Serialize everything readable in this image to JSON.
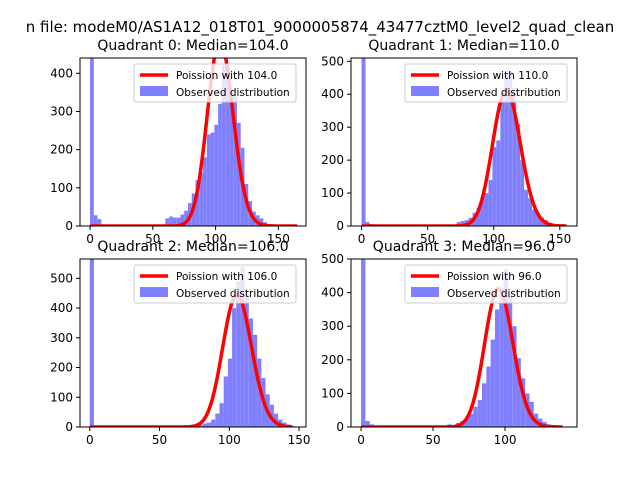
{
  "figure": {
    "suptitle": "n file: modeM0/AS1A12_018T01_9000005874_43477cztM0_level2_quad_clean"
  },
  "chart_data": [
    {
      "type": "bar",
      "title": "Quadrant 0: Median=104.0",
      "xlim": [
        -8,
        172
      ],
      "ylim": [
        0,
        440
      ],
      "xticks": [
        0,
        50,
        100,
        150
      ],
      "yticks": [
        0,
        100,
        200,
        300,
        400
      ],
      "hist": {
        "name": "Observed distribution",
        "color": "#8080ff",
        "bin_width": 3,
        "bins": [
          [
            0,
            440
          ],
          [
            3,
            28
          ],
          [
            6,
            18
          ],
          [
            24,
            2
          ],
          [
            36,
            2
          ],
          [
            48,
            3
          ],
          [
            60,
            20
          ],
          [
            63,
            25
          ],
          [
            66,
            22
          ],
          [
            69,
            22
          ],
          [
            72,
            30
          ],
          [
            75,
            40
          ],
          [
            78,
            60
          ],
          [
            81,
            85
          ],
          [
            84,
            120
          ],
          [
            87,
            140
          ],
          [
            90,
            180
          ],
          [
            93,
            240
          ],
          [
            96,
            245
          ],
          [
            99,
            265
          ],
          [
            102,
            320
          ],
          [
            105,
            420
          ],
          [
            108,
            400
          ],
          [
            111,
            355
          ],
          [
            114,
            340
          ],
          [
            117,
            270
          ],
          [
            120,
            205
          ],
          [
            123,
            110
          ],
          [
            126,
            65
          ],
          [
            129,
            38
          ],
          [
            132,
            28
          ],
          [
            135,
            20
          ],
          [
            138,
            10
          ],
          [
            141,
            5
          ],
          [
            144,
            3
          ],
          [
            150,
            2
          ],
          [
            159,
            2
          ],
          [
            162,
            2
          ]
        ]
      },
      "curve": {
        "name": "Poission with 104.0",
        "color": "#ff0000",
        "mean": 104.0,
        "x_range": [
          0,
          165
        ]
      },
      "legend": {
        "position": "top-right",
        "entries": [
          "Poission with 104.0",
          "Observed distribution"
        ]
      }
    },
    {
      "type": "bar",
      "title": "Quadrant 1: Median=110.0",
      "xlim": [
        -8,
        163
      ],
      "ylim": [
        0,
        510
      ],
      "xticks": [
        0,
        50,
        100,
        150
      ],
      "yticks": [
        0,
        100,
        200,
        300,
        400,
        500
      ],
      "hist": {
        "name": "Observed distribution",
        "color": "#8080ff",
        "bin_width": 3,
        "bins": [
          [
            0,
            510
          ],
          [
            3,
            12
          ],
          [
            6,
            6
          ],
          [
            63,
            5
          ],
          [
            72,
            12
          ],
          [
            75,
            15
          ],
          [
            78,
            18
          ],
          [
            81,
            25
          ],
          [
            84,
            40
          ],
          [
            87,
            55
          ],
          [
            90,
            90
          ],
          [
            93,
            100
          ],
          [
            96,
            140
          ],
          [
            99,
            240
          ],
          [
            102,
            260
          ],
          [
            105,
            380
          ],
          [
            108,
            460
          ],
          [
            111,
            470
          ],
          [
            114,
            420
          ],
          [
            117,
            310
          ],
          [
            120,
            200
          ],
          [
            123,
            110
          ],
          [
            126,
            85
          ],
          [
            129,
            50
          ],
          [
            132,
            40
          ],
          [
            135,
            25
          ],
          [
            138,
            18
          ],
          [
            141,
            10
          ],
          [
            144,
            6
          ],
          [
            147,
            4
          ],
          [
            150,
            3
          ],
          [
            153,
            2
          ]
        ]
      },
      "curve": {
        "name": "Poission with 110.0",
        "color": "#ff0000",
        "mean": 110.0,
        "x_range": [
          0,
          155
        ]
      },
      "legend": {
        "position": "top-right",
        "entries": [
          "Poission with 110.0",
          "Observed distribution"
        ]
      }
    },
    {
      "type": "bar",
      "title": "Quadrant 2: Median=106.0",
      "xlim": [
        -7,
        155
      ],
      "ylim": [
        0,
        565
      ],
      "xticks": [
        0,
        50,
        100,
        150
      ],
      "yticks": [
        0,
        100,
        200,
        300,
        400,
        500
      ],
      "hist": {
        "name": "Observed distribution",
        "color": "#8080ff",
        "bin_width": 3,
        "bins": [
          [
            0,
            565
          ],
          [
            66,
            4
          ],
          [
            72,
            6
          ],
          [
            75,
            8
          ],
          [
            78,
            8
          ],
          [
            81,
            12
          ],
          [
            84,
            15
          ],
          [
            87,
            25
          ],
          [
            90,
            45
          ],
          [
            93,
            80
          ],
          [
            96,
            170
          ],
          [
            99,
            230
          ],
          [
            102,
            400
          ],
          [
            105,
            490
          ],
          [
            108,
            540
          ],
          [
            111,
            445
          ],
          [
            114,
            365
          ],
          [
            117,
            310
          ],
          [
            120,
            230
          ],
          [
            123,
            165
          ],
          [
            126,
            110
          ],
          [
            129,
            75
          ],
          [
            132,
            45
          ],
          [
            135,
            25
          ],
          [
            138,
            15
          ],
          [
            141,
            8
          ],
          [
            144,
            4
          ]
        ]
      },
      "curve": {
        "name": "Poission with 106.0",
        "color": "#ff0000",
        "mean": 106.0,
        "x_range": [
          0,
          145
        ]
      },
      "legend": {
        "position": "top-right",
        "entries": [
          "Poission with 106.0",
          "Observed distribution"
        ]
      }
    },
    {
      "type": "bar",
      "title": "Quadrant 3: Median=96.0",
      "xlim": [
        -7,
        150
      ],
      "ylim": [
        0,
        500
      ],
      "xticks": [
        0,
        50,
        100
      ],
      "yticks": [
        0,
        100,
        200,
        300,
        400,
        500
      ],
      "hist": {
        "name": "Observed distribution",
        "color": "#8080ff",
        "bin_width": 3,
        "bins": [
          [
            0,
            500
          ],
          [
            3,
            18
          ],
          [
            6,
            8
          ],
          [
            54,
            5
          ],
          [
            60,
            8
          ],
          [
            66,
            12
          ],
          [
            69,
            18
          ],
          [
            72,
            25
          ],
          [
            75,
            40
          ],
          [
            78,
            60
          ],
          [
            81,
            80
          ],
          [
            84,
            130
          ],
          [
            87,
            180
          ],
          [
            90,
            260
          ],
          [
            93,
            350
          ],
          [
            96,
            400
          ],
          [
            99,
            470
          ],
          [
            102,
            390
          ],
          [
            105,
            300
          ],
          [
            108,
            205
          ],
          [
            111,
            145
          ],
          [
            114,
            100
          ],
          [
            117,
            75
          ],
          [
            120,
            40
          ],
          [
            123,
            25
          ],
          [
            126,
            15
          ],
          [
            129,
            8
          ],
          [
            132,
            4
          ]
        ]
      },
      "curve": {
        "name": "Poission with 96.0",
        "color": "#ff0000",
        "mean": 96.0,
        "x_range": [
          0,
          140
        ]
      },
      "legend": {
        "position": "top-right",
        "entries": [
          "Poission with 96.0",
          "Observed distribution"
        ]
      }
    }
  ]
}
